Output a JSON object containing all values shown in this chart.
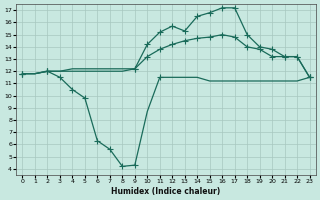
{
  "xlabel": "Humidex (Indice chaleur)",
  "bg_color": "#c8e8e0",
  "line_color": "#1a6b5a",
  "grid_color": "#a8c8c0",
  "xlim": [
    -0.5,
    23.5
  ],
  "ylim": [
    3.5,
    17.5
  ],
  "xticks": [
    0,
    1,
    2,
    3,
    4,
    5,
    6,
    7,
    8,
    9,
    10,
    11,
    12,
    13,
    14,
    15,
    16,
    17,
    18,
    19,
    20,
    21,
    22,
    23
  ],
  "yticks": [
    4,
    5,
    6,
    7,
    8,
    9,
    10,
    11,
    12,
    13,
    14,
    15,
    16,
    17
  ],
  "line1_x": [
    0,
    1,
    2,
    3,
    4,
    5,
    6,
    7,
    8,
    9,
    10,
    11,
    12,
    13,
    14,
    15,
    16,
    17,
    18,
    19,
    20,
    21,
    22,
    23
  ],
  "line1_y": [
    11.8,
    11.8,
    12.0,
    11.5,
    10.5,
    9.8,
    6.3,
    5.6,
    4.2,
    4.3,
    8.7,
    11.5,
    11.5,
    11.5,
    11.5,
    11.2,
    11.2,
    11.2,
    11.2,
    11.2,
    11.2,
    11.2,
    11.2,
    11.5
  ],
  "line1_markers_x": [
    0,
    2,
    3,
    4,
    5,
    6,
    7,
    8,
    9,
    11,
    23
  ],
  "line1_markers_y": [
    11.8,
    12.0,
    11.5,
    10.5,
    9.8,
    6.3,
    5.6,
    4.2,
    4.3,
    11.5,
    11.5
  ],
  "line2_x": [
    0,
    1,
    2,
    3,
    4,
    5,
    6,
    7,
    8,
    9,
    10,
    11,
    12,
    13,
    14,
    15,
    16,
    17,
    18,
    19,
    20,
    21,
    22,
    23
  ],
  "line2_y": [
    11.8,
    11.8,
    12.0,
    12.0,
    12.0,
    12.0,
    12.0,
    12.0,
    12.0,
    12.2,
    13.2,
    13.8,
    14.2,
    14.5,
    14.7,
    14.8,
    15.0,
    14.8,
    14.0,
    13.8,
    13.2,
    13.2,
    13.2,
    11.5
  ],
  "line2_markers_x": [
    0,
    2,
    9,
    10,
    11,
    12,
    13,
    14,
    15,
    16,
    17,
    18,
    19,
    20,
    21,
    22,
    23
  ],
  "line2_markers_y": [
    11.8,
    12.0,
    12.2,
    13.2,
    13.8,
    14.2,
    14.5,
    14.7,
    14.8,
    15.0,
    14.8,
    14.0,
    13.8,
    13.2,
    13.2,
    13.2,
    11.5
  ],
  "line3_x": [
    0,
    1,
    2,
    3,
    4,
    5,
    6,
    7,
    8,
    9,
    10,
    11,
    12,
    13,
    14,
    15,
    16,
    17,
    18,
    19,
    20,
    21,
    22,
    23
  ],
  "line3_y": [
    11.8,
    11.8,
    12.0,
    12.0,
    12.2,
    12.2,
    12.2,
    12.2,
    12.2,
    12.2,
    14.2,
    15.2,
    15.7,
    15.3,
    16.5,
    16.8,
    17.2,
    17.2,
    15.0,
    14.0,
    13.8,
    13.2,
    13.2,
    11.5
  ],
  "line3_markers_x": [
    0,
    2,
    9,
    10,
    11,
    12,
    13,
    14,
    15,
    16,
    17,
    18,
    19,
    20,
    21,
    22,
    23
  ],
  "line3_markers_y": [
    11.8,
    12.0,
    12.2,
    14.2,
    15.2,
    15.7,
    15.3,
    16.5,
    16.8,
    17.2,
    17.2,
    15.0,
    14.0,
    13.8,
    13.2,
    13.2,
    11.5
  ],
  "markersize": 4,
  "linewidth": 0.9
}
